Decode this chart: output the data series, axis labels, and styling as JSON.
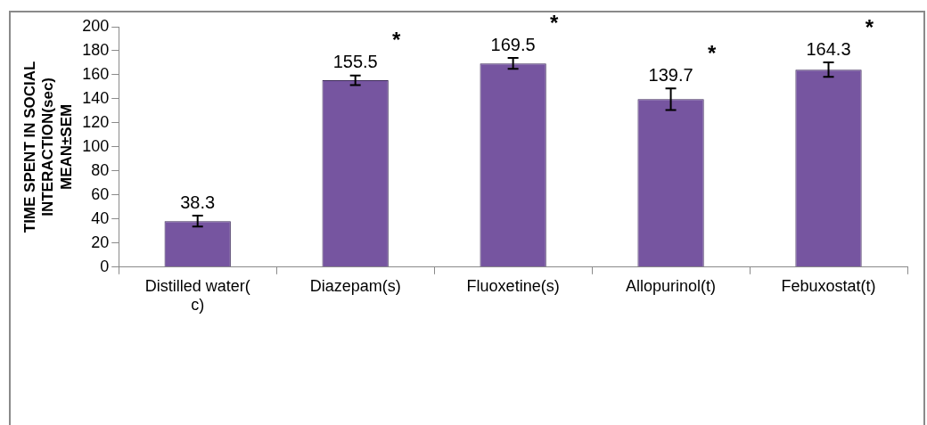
{
  "chart_data": {
    "type": "bar",
    "ylabel": "TIME SPENT IN SOCIAL INTERACTION(sec) MEAN±SEM",
    "categories": [
      "Distilled water( c)",
      "Diazepam(s)",
      "Fluoxetine(s)",
      "Allopurinol(t)",
      "Febuxostat(t)"
    ],
    "values": [
      38.3,
      155.5,
      169.5,
      139.7,
      164.3
    ],
    "color": "#7655a0",
    "errors": [
      4.5,
      4,
      4.5,
      9,
      6
    ],
    "ylim": [
      0,
      200
    ],
    "yticks": [
      0,
      20,
      40,
      60,
      80,
      100,
      120,
      140,
      160,
      180,
      200
    ],
    "grid": false,
    "data_labels": true,
    "annotations": [
      "*",
      "*",
      "*",
      "*"
    ]
  }
}
